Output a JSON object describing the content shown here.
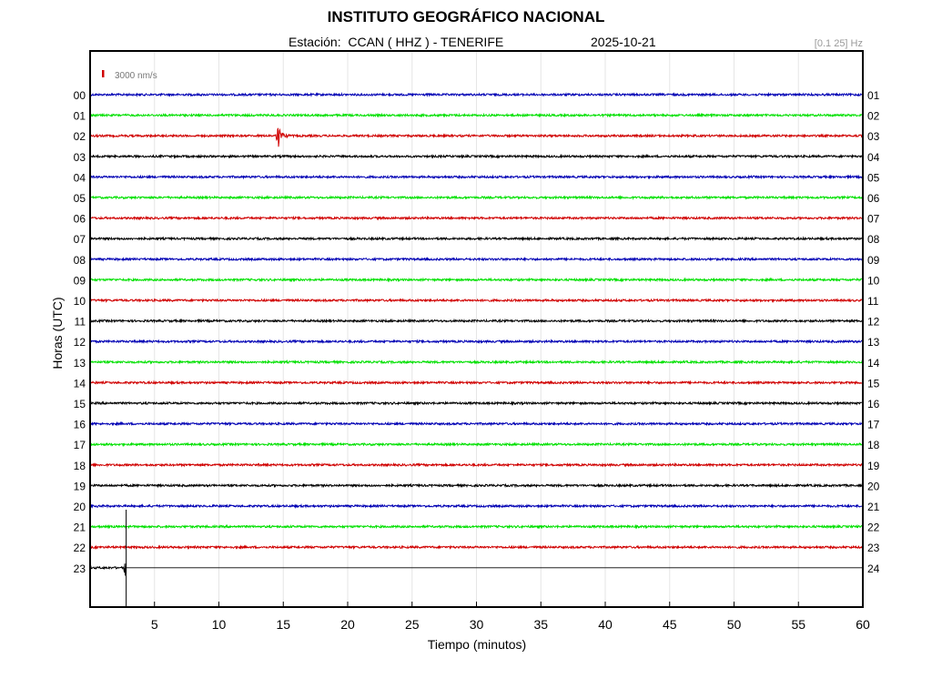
{
  "header": {
    "title": "INSTITUTO GEOGRÁFICO NACIONAL",
    "station": "Estación:  CCAN ( HHZ ) - TENERIFE",
    "date": "2025-10-21",
    "freq_band": "[0.1 25] Hz"
  },
  "chart_data": {
    "type": "line",
    "title": "INSTITUTO GEOGRÁFICO NACIONAL",
    "xlabel": "Tiempo (minutos)",
    "ylabel": "Horas (UTC)",
    "xlim": [
      0,
      60
    ],
    "x_ticks": [
      "5",
      "10",
      "15",
      "20",
      "25",
      "30",
      "35",
      "40",
      "45",
      "50",
      "55",
      "60"
    ],
    "left_hour_labels": [
      "00",
      "01",
      "02",
      "03",
      "04",
      "05",
      "06",
      "07",
      "08",
      "09",
      "10",
      "11",
      "12",
      "13",
      "14",
      "15",
      "16",
      "17",
      "18",
      "19",
      "20",
      "21",
      "22",
      "23"
    ],
    "right_hour_labels": [
      "01",
      "02",
      "03",
      "04",
      "05",
      "06",
      "07",
      "08",
      "09",
      "10",
      "11",
      "12",
      "13",
      "14",
      "15",
      "16",
      "17",
      "18",
      "19",
      "20",
      "21",
      "22",
      "23",
      "24"
    ],
    "trace_colors": [
      "#0000b4",
      "#00e000",
      "#d00000",
      "#000000"
    ],
    "scale_label": "3000 nm/s",
    "scale_color": "#d00000",
    "grid": true,
    "trace_ends_minutes": {
      "23": 2.8
    },
    "events": [
      {
        "hour": "02",
        "minute": 14.6,
        "color": "#d00000"
      },
      {
        "hour": "23",
        "minute": 2.8,
        "color": "#000000"
      }
    ],
    "marker_minute": 2.8
  }
}
